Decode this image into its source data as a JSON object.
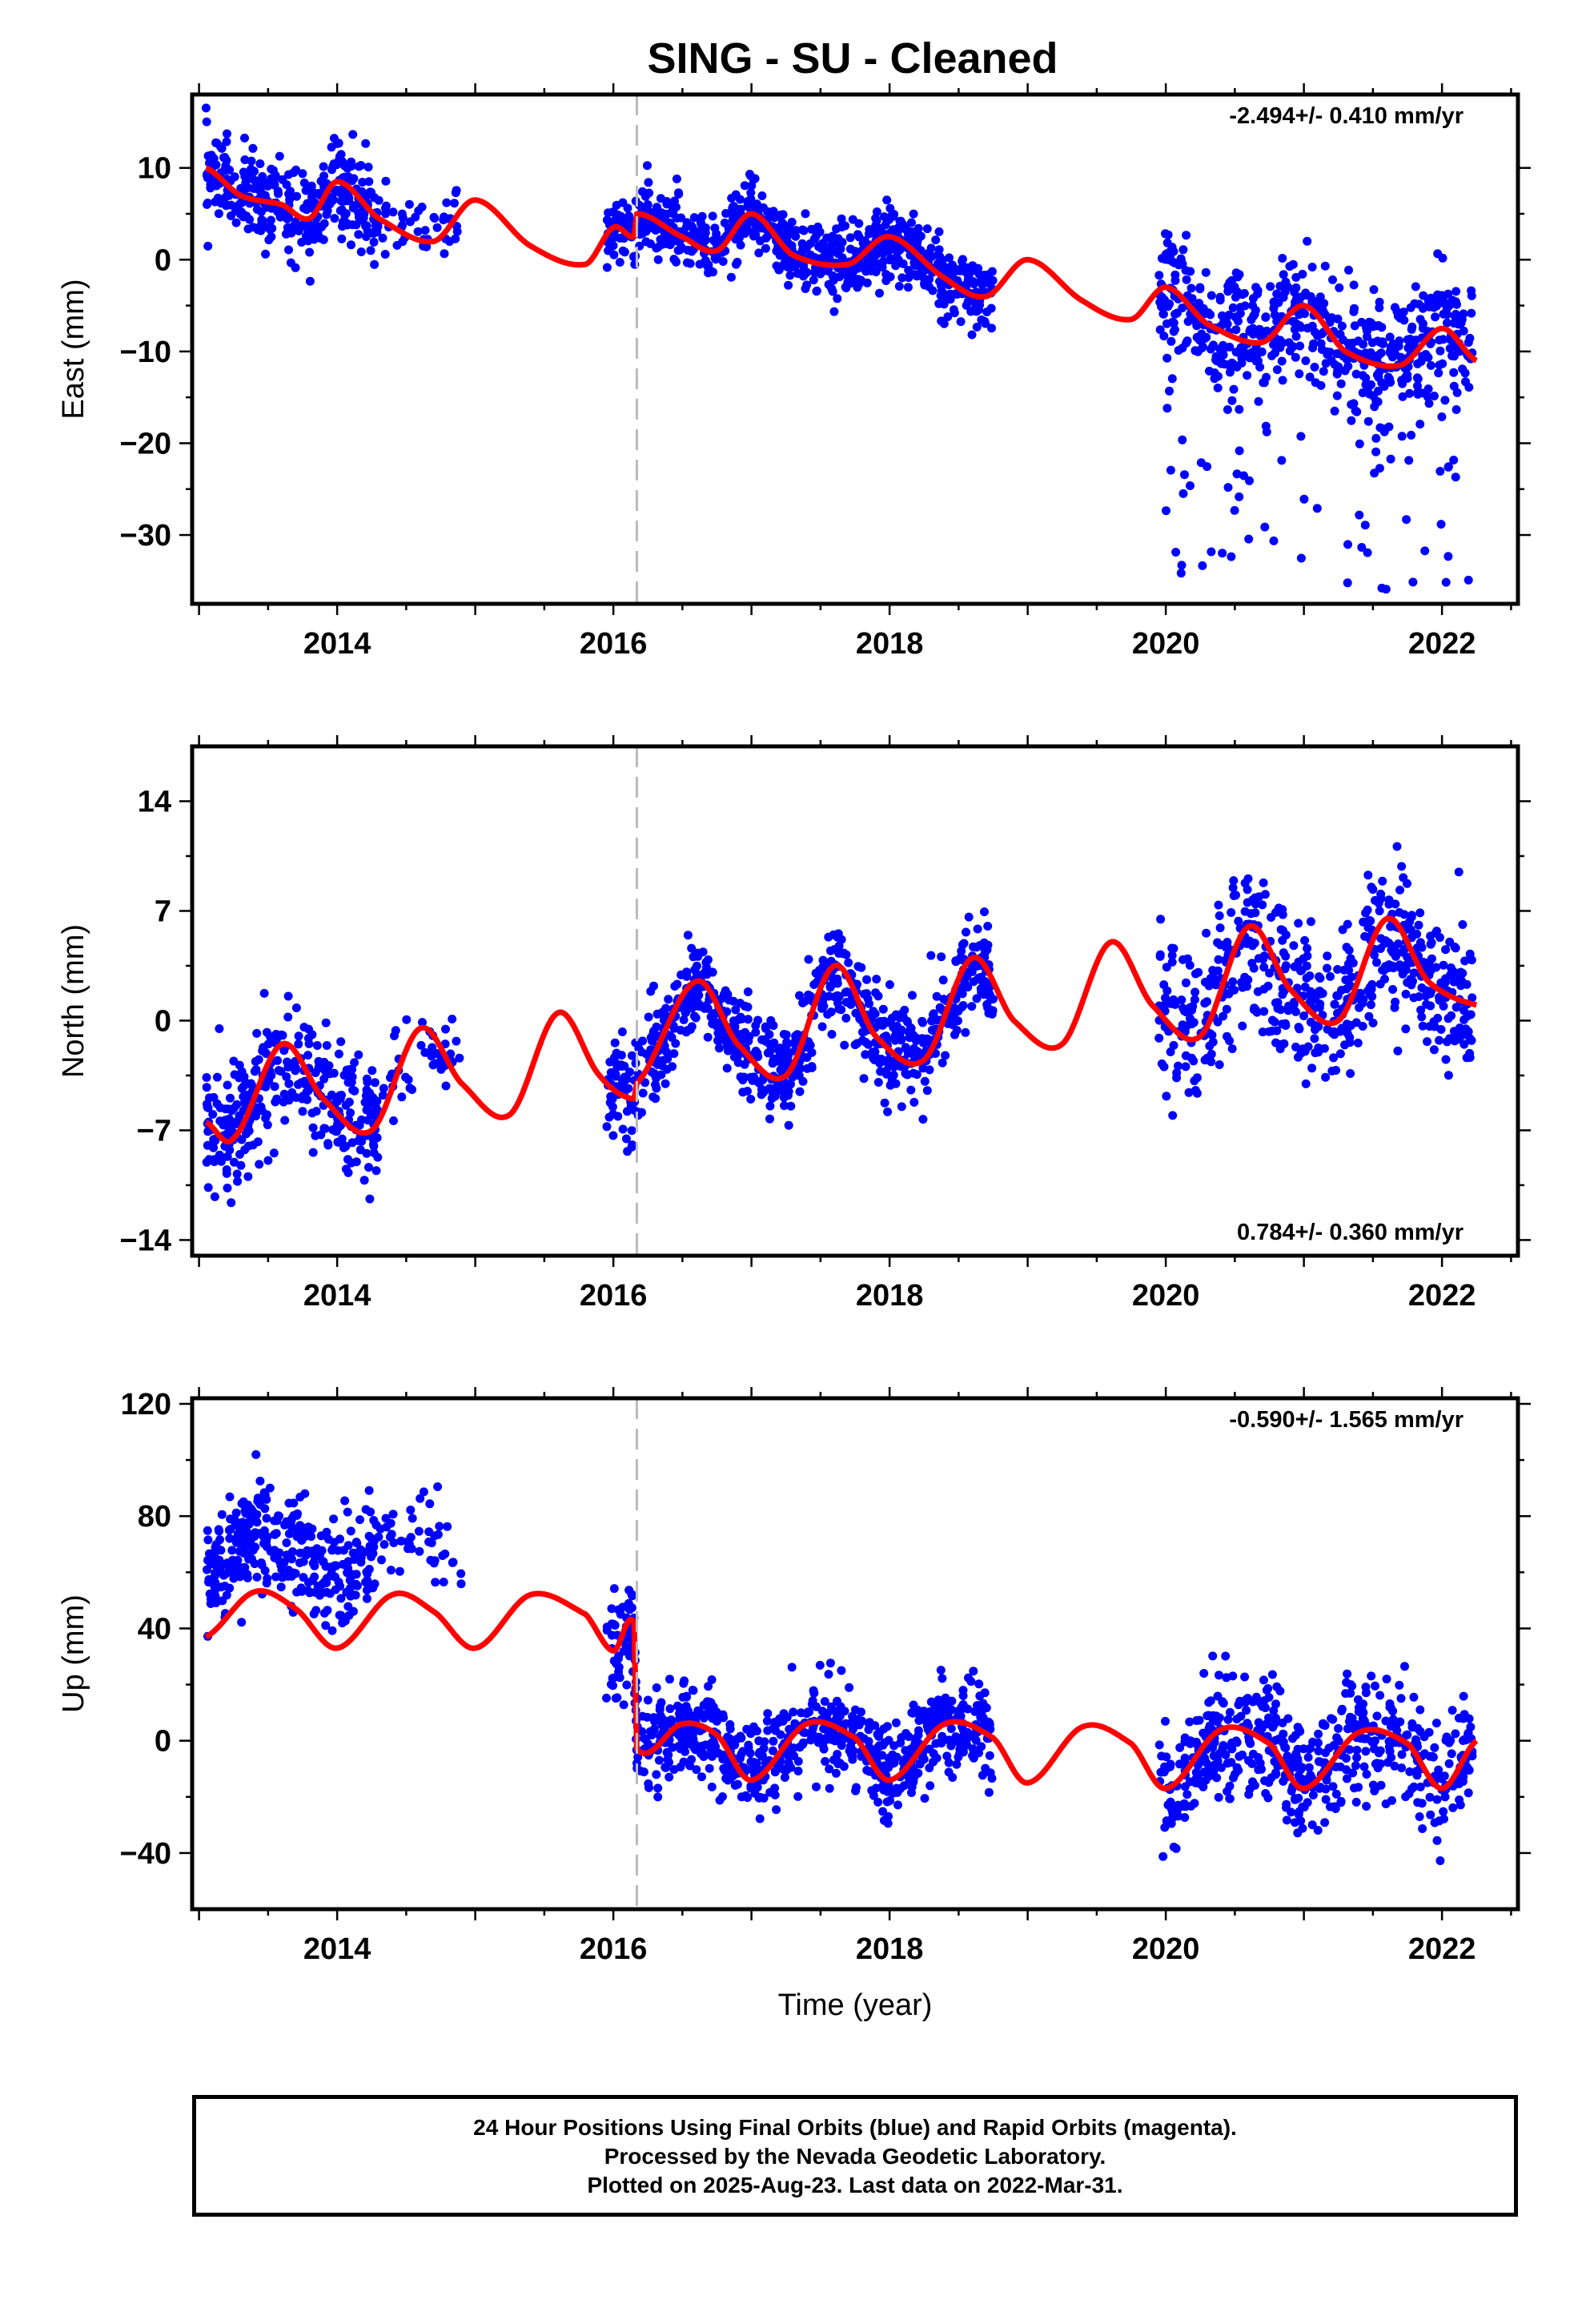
{
  "page": {
    "title": "SING  - SU - Cleaned"
  },
  "chart_data": [
    {
      "type": "scatter",
      "panel": "east",
      "title": "SING  - SU - Cleaned",
      "xlabel": "",
      "ylabel": "East (mm)",
      "xlim": [
        2012.95,
        2022.55
      ],
      "ylim": [
        -37.5,
        18
      ],
      "xticks": [
        2014,
        2016,
        2018,
        2020,
        2022
      ],
      "yticks": [
        10,
        0,
        -10,
        -20,
        -30
      ],
      "ytick_labels": [
        "10",
        "0",
        "−10",
        "−20",
        "−30"
      ],
      "rate_label": "-2.494+/- 0.410 mm/yr",
      "rate_position": "top-right",
      "equipment_change": 2016.17,
      "point_color": "#0000ff",
      "model_color": "#ff0000",
      "model_curve": {
        "x": [
          2013.05,
          2013.3,
          2013.6,
          2013.8,
          2014.0,
          2014.3,
          2014.7,
          2015.0,
          2015.4,
          2015.8,
          2016.0,
          2016.15,
          2016.17,
          2016.5,
          2016.75,
          2017.0,
          2017.3,
          2017.7,
          2018.0,
          2018.4,
          2018.7,
          2019.0,
          2019.4,
          2019.75,
          2020.0,
          2020.3,
          2020.7,
          2021.0,
          2021.3,
          2021.7,
          2022.0,
          2022.25
        ],
        "y": [
          10,
          7,
          6,
          4.5,
          8.5,
          4.5,
          2,
          6.5,
          1.5,
          -0.5,
          3.5,
          2.5,
          5,
          2.5,
          1,
          5,
          0.5,
          -0.5,
          2.5,
          -2,
          -4,
          0,
          -4.5,
          -6.5,
          -3,
          -7,
          -9,
          -5,
          -10,
          -11.5,
          -7.5,
          -11
        ]
      },
      "point_segments": [
        {
          "x0": 2013.05,
          "x1": 2014.3,
          "count": 340,
          "mean": "model",
          "std": 2.4
        },
        {
          "x0": 2014.3,
          "x1": 2014.9,
          "count": 45,
          "mean": "model",
          "std": 2.0
        },
        {
          "x0": 2015.95,
          "x1": 2018.75,
          "count": 780,
          "mean": "model",
          "std": 1.9
        },
        {
          "x0": 2019.95,
          "x1": 2022.22,
          "count": 560,
          "mean": "model",
          "std": 3.3,
          "outliers": 70,
          "outlier_range": [
            -36,
            -14
          ]
        }
      ]
    },
    {
      "type": "scatter",
      "panel": "north",
      "xlabel": "",
      "ylabel": "North (mm)",
      "xlim": [
        2012.95,
        2022.55
      ],
      "ylim": [
        -15,
        17.5
      ],
      "xticks": [
        2014,
        2016,
        2018,
        2020,
        2022
      ],
      "yticks": [
        14,
        7,
        0,
        -7,
        -14
      ],
      "ytick_labels": [
        "14",
        "7",
        "0",
        "−7",
        "−14"
      ],
      "rate_label": "0.784+/- 0.360 mm/yr",
      "rate_position": "bottom-right",
      "equipment_change": 2016.17,
      "point_color": "#0000ff",
      "model_color": "#ff0000",
      "model_curve": {
        "x": [
          2013.05,
          2013.25,
          2013.6,
          2013.9,
          2014.25,
          2014.6,
          2014.9,
          2015.25,
          2015.6,
          2015.9,
          2016.15,
          2016.17,
          2016.6,
          2016.9,
          2017.25,
          2017.6,
          2017.9,
          2018.25,
          2018.6,
          2018.9,
          2019.25,
          2019.6,
          2019.9,
          2020.25,
          2020.6,
          2020.9,
          2021.25,
          2021.6,
          2021.9,
          2022.25
        ],
        "y": [
          -6.5,
          -7.5,
          -1.5,
          -5,
          -7,
          -0.5,
          -4,
          -6,
          0.5,
          -3.5,
          -5,
          -4,
          2.5,
          -1.5,
          -3.5,
          3.5,
          -1,
          -2.5,
          4,
          0,
          -1.5,
          5,
          1,
          -1,
          6,
          2,
          0,
          6.5,
          2.5,
          1
        ]
      },
      "point_segments": [
        {
          "x0": 2013.05,
          "x1": 2014.3,
          "count": 340,
          "mean": "model",
          "std": 1.9
        },
        {
          "x0": 2014.3,
          "x1": 2014.9,
          "count": 40,
          "mean": "model",
          "std": 1.5
        },
        {
          "x0": 2015.95,
          "x1": 2018.75,
          "count": 780,
          "mean": "model",
          "std": 1.5
        },
        {
          "x0": 2019.95,
          "x1": 2022.22,
          "count": 560,
          "mean": "model",
          "std": 2.4
        }
      ]
    },
    {
      "type": "scatter",
      "panel": "up",
      "xlabel": "Time (year)",
      "ylabel": "Up (mm)",
      "xlim": [
        2012.95,
        2022.55
      ],
      "ylim": [
        -60,
        122
      ],
      "xticks": [
        2014,
        2016,
        2018,
        2020,
        2022
      ],
      "yticks": [
        120,
        80,
        40,
        0,
        -40
      ],
      "ytick_labels": [
        "120",
        "80",
        "40",
        "0",
        "−40"
      ],
      "rate_label": "-0.590+/- 1.565 mm/yr",
      "rate_position": "top-right",
      "equipment_change": 2016.17,
      "point_color": "#0000ff",
      "model_color": "#ff0000",
      "model_curve": {
        "x": [
          2013.05,
          2013.4,
          2013.7,
          2014.0,
          2014.4,
          2014.7,
          2015.0,
          2015.4,
          2015.8,
          2016.0,
          2016.15,
          2016.17,
          2016.5,
          2016.75,
          2017.0,
          2017.4,
          2017.75,
          2018.0,
          2018.4,
          2018.75,
          2019.0,
          2019.4,
          2019.75,
          2020.0,
          2020.4,
          2020.75,
          2021.0,
          2021.4,
          2021.75,
          2022.0,
          2022.25
        ],
        "y": [
          37,
          53,
          47,
          33,
          52,
          46,
          33,
          52,
          45,
          32,
          42,
          -3,
          6,
          2,
          -14,
          6,
          1,
          -14,
          6,
          1,
          -15,
          5,
          -1,
          -17,
          4,
          -1,
          -17,
          3,
          -1,
          -17,
          0
        ]
      },
      "point_segments": [
        {
          "x0": 2013.05,
          "x1": 2014.3,
          "count": 340,
          "offset": 22,
          "std": 10
        },
        {
          "x0": 2014.3,
          "x1": 2014.9,
          "count": 45,
          "offset": 25,
          "std": 8
        },
        {
          "x0": 2015.95,
          "x1": 2018.75,
          "count": 780,
          "offset": 0,
          "std": 8
        },
        {
          "x0": 2019.95,
          "x1": 2022.22,
          "count": 560,
          "offset": 0,
          "std": 11
        }
      ]
    }
  ],
  "footer": {
    "line1": "24 Hour Positions Using Final Orbits (blue) and Rapid Orbits (magenta).",
    "line2": "Processed by the Nevada Geodetic Laboratory.",
    "line3": "Plotted on 2025-Aug-23. Last data on 2022-Mar-31."
  }
}
